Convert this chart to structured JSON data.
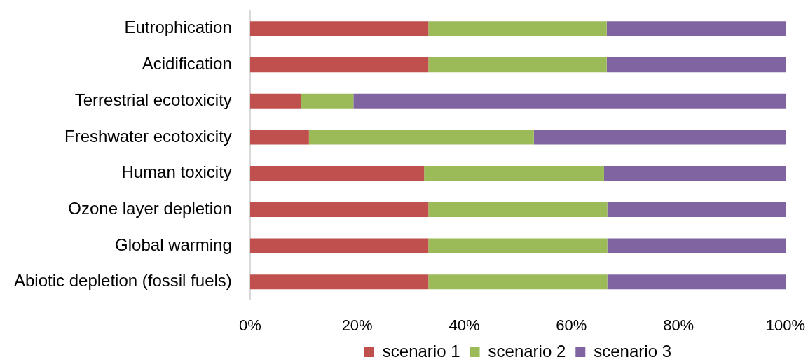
{
  "chart_data": {
    "type": "bar",
    "orientation": "horizontal",
    "stacked": true,
    "categories": [
      "Eutrophication",
      "Acidification",
      "Terrestrial ecotoxicity",
      "Freshwater ecotoxicity",
      "Human toxicity",
      "Ozone layer depletion",
      "Global warming",
      "Abiotic depletion (fossil fuels)"
    ],
    "series": [
      {
        "name": "scenario 1",
        "color": "#c0504d",
        "values": [
          33.3,
          33.3,
          9.5,
          11,
          32.5,
          33.3,
          33.3,
          33.3
        ]
      },
      {
        "name": "scenario 2",
        "color": "#9bbb59",
        "values": [
          33.3,
          33.3,
          9.8,
          42,
          33.6,
          33.4,
          33.4,
          33.4
        ]
      },
      {
        "name": "scenario 3",
        "color": "#8064a2",
        "values": [
          33.4,
          33.4,
          80.7,
          47,
          33.9,
          33.3,
          33.3,
          33.3
        ]
      }
    ],
    "xlim": [
      0,
      100
    ],
    "xticks": [
      {
        "value": 0,
        "label": "0%"
      },
      {
        "value": 20,
        "label": "20%"
      },
      {
        "value": 40,
        "label": "40%"
      },
      {
        "value": 60,
        "label": "60%"
      },
      {
        "value": 80,
        "label": "80%"
      },
      {
        "value": 100,
        "label": "100%"
      }
    ],
    "legend": "bottom"
  }
}
